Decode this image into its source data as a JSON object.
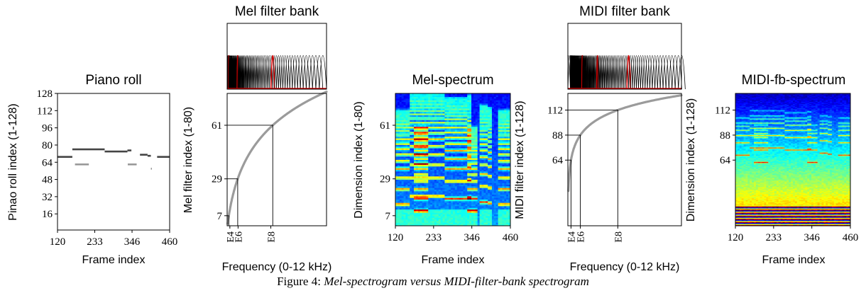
{
  "caption": {
    "prefix": "Figure 4:",
    "text": "Mel-spectrogram versus MIDI-filter-bank spectrogram"
  },
  "colors": {
    "note_dark": "#444444",
    "note_light": "#999999",
    "filter_black": "#000000",
    "filter_red": "#cc0000",
    "curve_gray": "#8a8a8a"
  },
  "chart_data": [
    {
      "id": "piano-roll",
      "type": "heatmap",
      "title": "Piano roll",
      "xlabel": "Frame index",
      "ylabel": "Pinao roll index (1-128)",
      "xlim": [
        120,
        460
      ],
      "ylim": [
        1,
        128
      ],
      "xticks": [
        "120",
        "233",
        "346",
        "460"
      ],
      "yticks": [
        "16",
        "32",
        "48",
        "64",
        "80",
        "96",
        "112",
        "128"
      ],
      "notes": [
        {
          "start": 120,
          "end": 165,
          "pitch": 69,
          "shade": "dark"
        },
        {
          "start": 165,
          "end": 263,
          "pitch": 76,
          "shade": "dark"
        },
        {
          "start": 263,
          "end": 332,
          "pitch": 74,
          "shade": "dark"
        },
        {
          "start": 332,
          "end": 344,
          "pitch": 75,
          "shade": "dark"
        },
        {
          "start": 370,
          "end": 393,
          "pitch": 71,
          "shade": "dark"
        },
        {
          "start": 393,
          "end": 403,
          "pitch": 70,
          "shade": "dark"
        },
        {
          "start": 422,
          "end": 460,
          "pitch": 69,
          "shade": "dark"
        },
        {
          "start": 173,
          "end": 215,
          "pitch": 62,
          "shade": "light"
        },
        {
          "start": 333,
          "end": 360,
          "pitch": 62,
          "shade": "light"
        },
        {
          "start": 403,
          "end": 406,
          "pitch": 58,
          "shade": "light"
        }
      ]
    },
    {
      "id": "mel-filter-bank",
      "type": "line",
      "title": "Mel filter bank",
      "filters_count": 80,
      "highlighted_filters": [
        7,
        29,
        61
      ],
      "curve": {
        "xlabel": "Frequency (0-12 kHz)",
        "ylabel": "Mel filter index (1-80)",
        "xlim_hz": [
          0,
          12000
        ],
        "ylim": [
          1,
          80
        ],
        "yticks": [
          "7",
          "29",
          "61"
        ],
        "xticks": [
          {
            "label": "E4",
            "hz": 329.6
          },
          {
            "label": "E6",
            "hz": 1318.5
          },
          {
            "label": "E8",
            "hz": 5274.0
          }
        ],
        "guide_levels": [
          7,
          29,
          61
        ]
      }
    },
    {
      "id": "mel-spectrum",
      "type": "heatmap",
      "title": "Mel-spectrum",
      "xlabel": "Frame index",
      "ylabel": "Dimension index (1-80)",
      "xlim": [
        120,
        460
      ],
      "ylim": [
        1,
        80
      ],
      "xticks": [
        "120",
        "233",
        "346",
        "460"
      ],
      "yticks": [
        "7",
        "29",
        "61"
      ]
    },
    {
      "id": "midi-filter-bank",
      "type": "line",
      "title": "MIDI filter bank",
      "filters_count": 128,
      "highlighted_filters": [
        64,
        88,
        112
      ],
      "curve": {
        "xlabel": "Frequency (0-12 kHz)",
        "ylabel": "MIDI filter index (1-128)",
        "xlim_hz": [
          0,
          12000
        ],
        "ylim": [
          1,
          128
        ],
        "yticks": [
          "64",
          "88",
          "112"
        ],
        "xticks": [
          {
            "label": "E4",
            "hz": 329.6
          },
          {
            "label": "E6",
            "hz": 1318.5
          },
          {
            "label": "E8",
            "hz": 5274.0
          }
        ],
        "guide_levels": [
          64,
          88,
          112
        ]
      }
    },
    {
      "id": "midi-fb-spectrum",
      "type": "heatmap",
      "title": "MIDI-fb-spectrum",
      "xlabel": "Frame index",
      "ylabel": "Dimension index (1-128)",
      "xlim": [
        120,
        460
      ],
      "ylim": [
        1,
        128
      ],
      "xticks": [
        "120",
        "233",
        "346",
        "460"
      ],
      "yticks": [
        "64",
        "88",
        "112"
      ]
    }
  ]
}
